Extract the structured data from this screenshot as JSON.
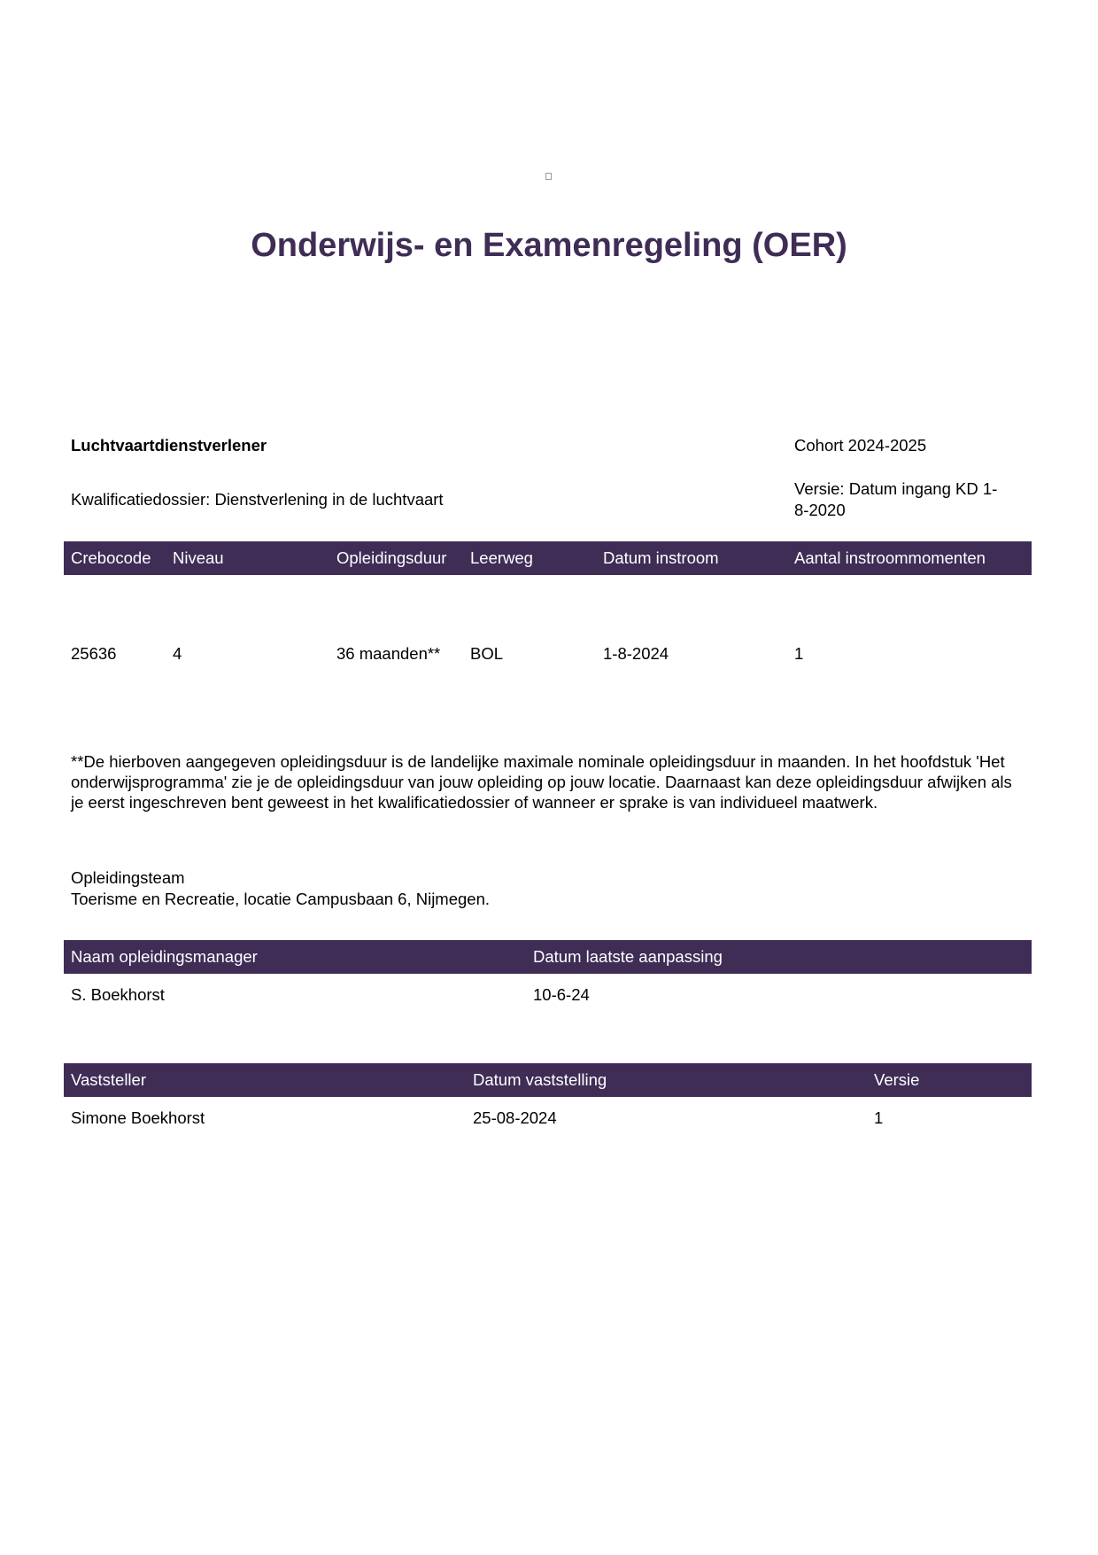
{
  "title": "Onderwijs- en Examenregeling (OER)",
  "program": {
    "name": "Luchtvaartdienstverlener",
    "cohort": "Cohort 2024-2025",
    "kwalificatiedossier": "Kwalificatiedossier: Dienstverlening in de luchtvaart",
    "versie_line1": "Versie: Datum ingang KD 1-",
    "versie_line2": "8-2020"
  },
  "table1": {
    "headers": [
      "Crebocode",
      "Niveau",
      "Opleidingsduur",
      "Leerweg",
      "Datum instroom",
      "Aantal instroommomenten"
    ],
    "row": [
      "25636",
      "4",
      "36 maanden**",
      "BOL",
      "1-8-2024",
      "1"
    ]
  },
  "footnote": "**De hierboven aangegeven opleidingsduur is de landelijke maximale nominale opleidingsduur in maanden. In het hoofdstuk 'Het onderwijsprogramma' zie je de opleidingsduur van jouw opleiding op jouw locatie. Daarnaast kan deze opleidingsduur afwijken als je eerst ingeschreven bent geweest in het kwalificatiedossier of wanneer er sprake is van individueel maatwerk.",
  "team": {
    "label": "Opleidingsteam",
    "value": "Toerisme en Recreatie, locatie Campusbaan 6, Nijmegen."
  },
  "table2": {
    "headers": [
      "Naam opleidingsmanager",
      "Datum laatste aanpassing"
    ],
    "row": [
      "S. Boekhorst",
      "10-6-24"
    ]
  },
  "table3": {
    "headers": [
      "Vaststeller",
      "Datum vaststelling",
      "Versie"
    ],
    "row": [
      "Simone Boekhorst",
      "25-08-2024",
      "1"
    ]
  },
  "colors": {
    "accent": "#3f2d56"
  }
}
